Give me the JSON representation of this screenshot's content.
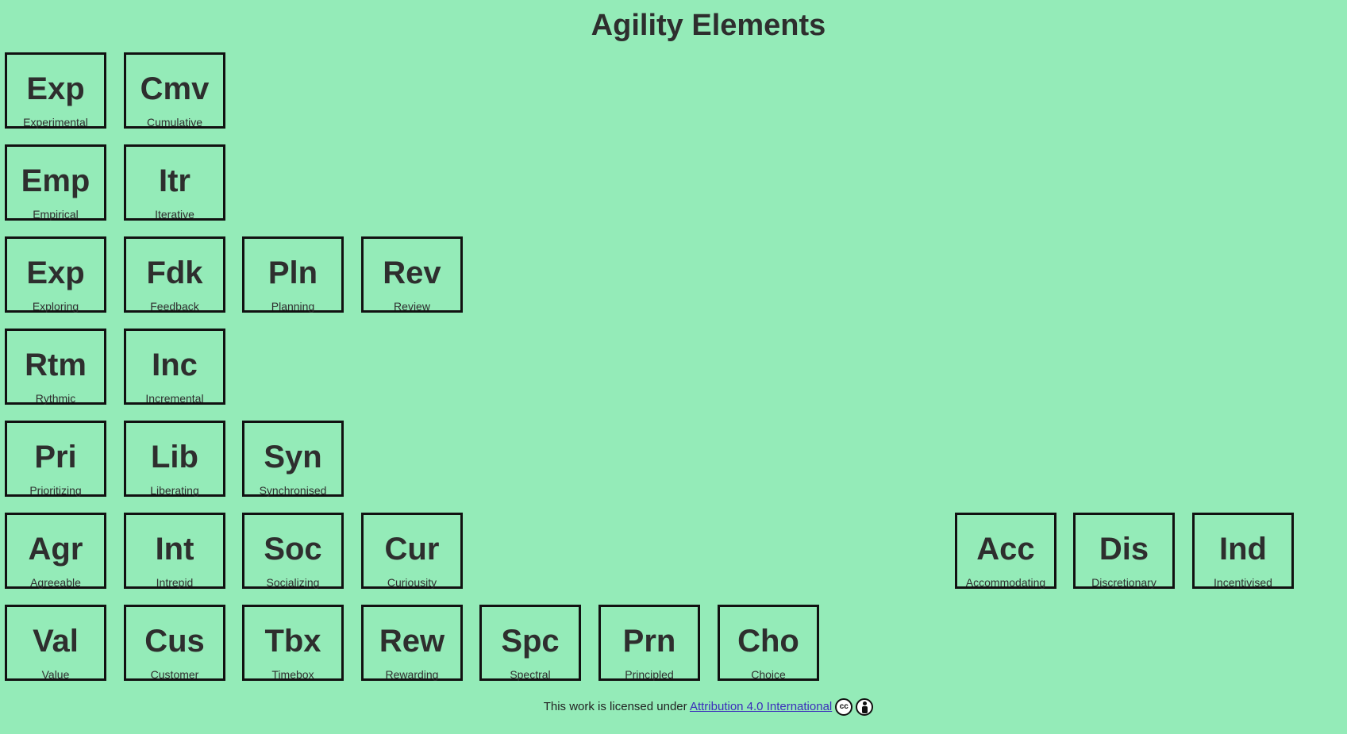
{
  "title": "Agility Elements",
  "elements": [
    {
      "symbol": "Exp",
      "name": "Experimental",
      "row": 0,
      "col": 0
    },
    {
      "symbol": "Cmv",
      "name": "Cumulative",
      "row": 0,
      "col": 1
    },
    {
      "symbol": "Emp",
      "name": "Empirical",
      "row": 1,
      "col": 0
    },
    {
      "symbol": "Itr",
      "name": "Iterative",
      "row": 1,
      "col": 1
    },
    {
      "symbol": "Exp",
      "name": "Exploring",
      "row": 2,
      "col": 0
    },
    {
      "symbol": "Fdk",
      "name": "Feedback",
      "row": 2,
      "col": 1
    },
    {
      "symbol": "Pln",
      "name": "Planning",
      "row": 2,
      "col": 2
    },
    {
      "symbol": "Rev",
      "name": "Review",
      "row": 2,
      "col": 3
    },
    {
      "symbol": "Rtm",
      "name": "Rythmic",
      "row": 3,
      "col": 0
    },
    {
      "symbol": "Inc",
      "name": "Incremental",
      "row": 3,
      "col": 1
    },
    {
      "symbol": "Pri",
      "name": "Prioritizing",
      "row": 4,
      "col": 0
    },
    {
      "symbol": "Lib",
      "name": "Liberating",
      "row": 4,
      "col": 1
    },
    {
      "symbol": "Syn",
      "name": "Synchronised",
      "row": 4,
      "col": 2
    },
    {
      "symbol": "Agr",
      "name": "Agreeable",
      "row": 5,
      "col": 0
    },
    {
      "symbol": "Int",
      "name": "Intrepid",
      "row": 5,
      "col": 1
    },
    {
      "symbol": "Soc",
      "name": "Socializing",
      "row": 5,
      "col": 2
    },
    {
      "symbol": "Cur",
      "name": "Curiousity",
      "row": 5,
      "col": 3
    },
    {
      "symbol": "Acc",
      "name": "Accommodating",
      "row": 5,
      "col": 8
    },
    {
      "symbol": "Dis",
      "name": "Discretionary",
      "row": 5,
      "col": 9
    },
    {
      "symbol": "Ind",
      "name": "Incentivised",
      "row": 5,
      "col": 10
    },
    {
      "symbol": "Val",
      "name": "Value",
      "row": 6,
      "col": 0
    },
    {
      "symbol": "Cus",
      "name": "Customer",
      "row": 6,
      "col": 1
    },
    {
      "symbol": "Tbx",
      "name": "Timebox",
      "row": 6,
      "col": 2
    },
    {
      "symbol": "Rew",
      "name": "Rewarding",
      "row": 6,
      "col": 3
    },
    {
      "symbol": "Spc",
      "name": "Spectral",
      "row": 6,
      "col": 4
    },
    {
      "symbol": "Prn",
      "name": "Principled",
      "row": 6,
      "col": 5
    },
    {
      "symbol": "Cho",
      "name": "Choice",
      "row": 6,
      "col": 6
    }
  ],
  "footer": {
    "text": "This work is licensed under ",
    "link_text": "Attribution 4.0 International",
    "cc_icon_label": "cc"
  },
  "colors": {
    "background": "#94ebb8",
    "tile_border": "#111111",
    "link": "#3b2dbb"
  },
  "icons": [
    "creative-commons-icon",
    "attribution-icon"
  ]
}
